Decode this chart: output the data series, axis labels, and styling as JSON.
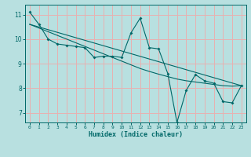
{
  "xlabel": "Humidex (Indice chaleur)",
  "bg_color": "#b8e0e0",
  "grid_color": "#e8b0b0",
  "line_color": "#006868",
  "xlim": [
    -0.5,
    23.5
  ],
  "ylim": [
    6.6,
    11.4
  ],
  "xticks": [
    0,
    1,
    2,
    3,
    4,
    5,
    6,
    7,
    8,
    9,
    10,
    11,
    12,
    13,
    14,
    15,
    16,
    17,
    18,
    19,
    20,
    21,
    22,
    23
  ],
  "yticks": [
    7,
    8,
    9,
    10,
    11
  ],
  "data_x": [
    0,
    1,
    2,
    3,
    4,
    5,
    6,
    7,
    8,
    9,
    10,
    11,
    12,
    13,
    14,
    15,
    16,
    17,
    18,
    19,
    20,
    21,
    22,
    23
  ],
  "data_y": [
    11.1,
    10.6,
    10.0,
    9.8,
    9.75,
    9.7,
    9.65,
    9.25,
    9.3,
    9.3,
    9.25,
    10.25,
    10.85,
    9.65,
    9.6,
    8.6,
    6.6,
    7.9,
    8.55,
    8.3,
    8.2,
    7.45,
    7.4,
    8.1
  ],
  "trend_x": [
    0,
    23
  ],
  "trend_y": [
    10.6,
    8.1
  ],
  "smooth_x": [
    0,
    1,
    2,
    3,
    4,
    5,
    6,
    7,
    8,
    9,
    10,
    11,
    12,
    13,
    14,
    15,
    16,
    17,
    18,
    19,
    20,
    21,
    22,
    23
  ],
  "smooth_y": [
    10.6,
    10.45,
    10.3,
    10.15,
    10.0,
    9.85,
    9.7,
    9.55,
    9.4,
    9.25,
    9.1,
    8.95,
    8.8,
    8.68,
    8.57,
    8.47,
    8.37,
    8.3,
    8.25,
    8.2,
    8.15,
    8.1,
    8.08,
    8.1
  ]
}
